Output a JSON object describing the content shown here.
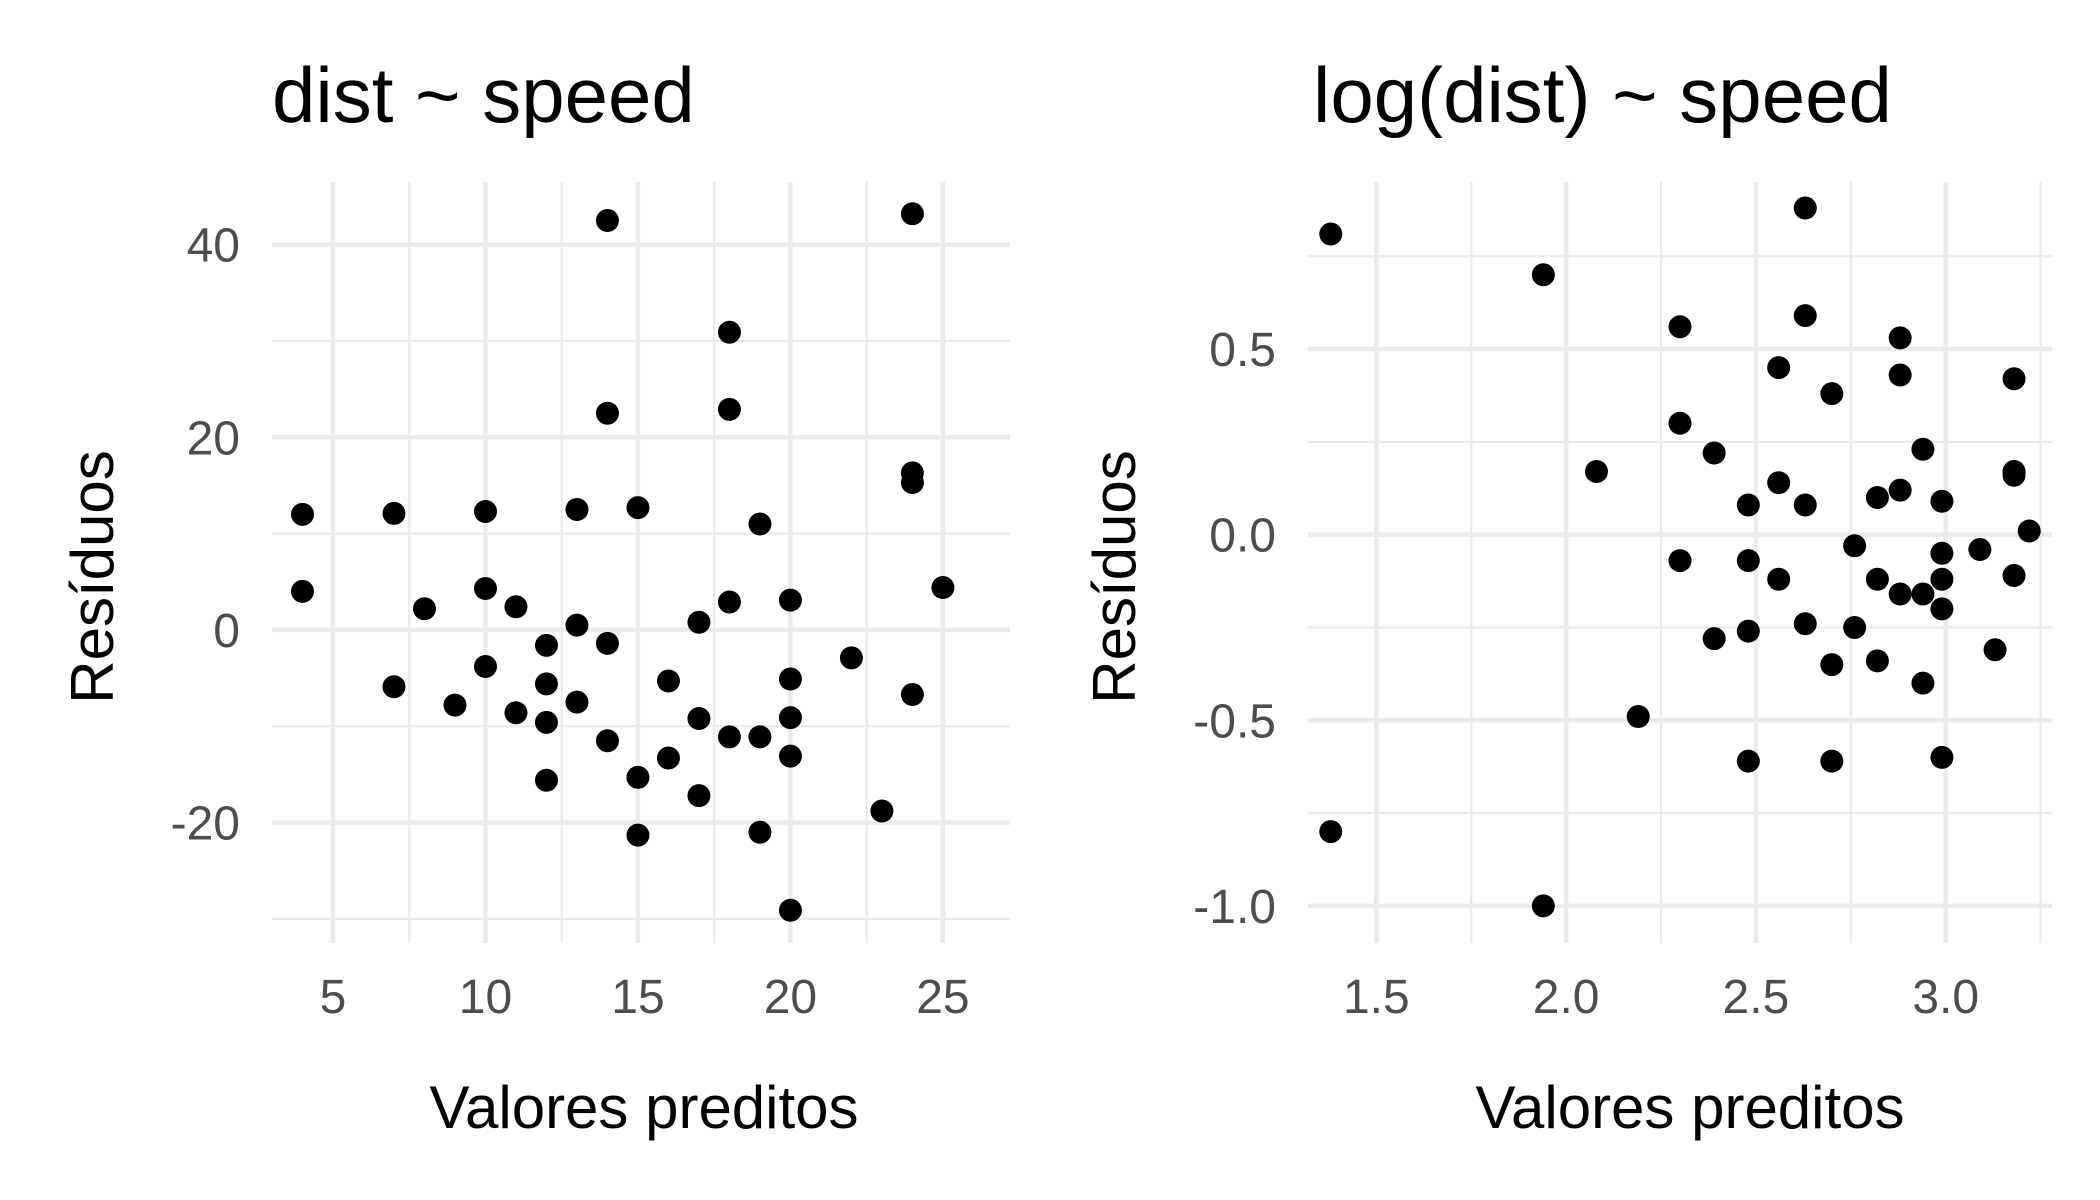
{
  "chart_data": [
    {
      "type": "scatter",
      "title": "dist ~ speed",
      "xlabel": "Valores preditos",
      "ylabel": "Resíduos",
      "xlim": [
        3,
        27.2
      ],
      "ylim": [
        -32.5,
        46.5
      ],
      "x_ticks": [
        5,
        10,
        15,
        20,
        25
      ],
      "x_tick_labels": [
        "5",
        "10",
        "15",
        "20",
        "25"
      ],
      "x_minor": [
        7.5,
        12.5,
        17.5,
        22.5
      ],
      "y_ticks": [
        -20,
        0,
        20,
        40
      ],
      "y_tick_labels": [
        "-20",
        "0",
        "20",
        "40"
      ],
      "y_minor": [
        -30,
        -10,
        10,
        30
      ],
      "grid": true,
      "legend": "none",
      "series": [
        {
          "points": [
            [
              4,
              12.0
            ],
            [
              4,
              4.0
            ],
            [
              7,
              12.1
            ],
            [
              7,
              -5.9
            ],
            [
              8,
              2.2
            ],
            [
              9,
              -7.8
            ],
            [
              10,
              12.3
            ],
            [
              10,
              4.3
            ],
            [
              10,
              -3.8
            ],
            [
              11,
              2.4
            ],
            [
              11,
              -8.6
            ],
            [
              12,
              -1.6
            ],
            [
              12,
              -5.6
            ],
            [
              12,
              -9.6
            ],
            [
              12,
              -15.6
            ],
            [
              13,
              0.5
            ],
            [
              13,
              12.5
            ],
            [
              13,
              -7.5
            ],
            [
              14,
              42.5
            ],
            [
              14,
              22.5
            ],
            [
              14,
              -1.4
            ],
            [
              14,
              -11.5
            ],
            [
              15,
              12.7
            ],
            [
              15,
              -15.3
            ],
            [
              15,
              -21.3
            ],
            [
              16,
              -5.3
            ],
            [
              16,
              -13.3
            ],
            [
              17,
              0.8
            ],
            [
              17,
              -9.2
            ],
            [
              17,
              -17.2
            ],
            [
              18,
              30.9
            ],
            [
              18,
              22.9
            ],
            [
              18,
              2.9
            ],
            [
              18,
              -11.1
            ],
            [
              19,
              11.0
            ],
            [
              19,
              -11.1
            ],
            [
              19,
              -21.0
            ],
            [
              20,
              3.1
            ],
            [
              20,
              -5.1
            ],
            [
              20,
              -9.1
            ],
            [
              20,
              -13.1
            ],
            [
              20,
              -29.1
            ],
            [
              22,
              -2.9
            ],
            [
              23,
              -18.8
            ],
            [
              24,
              43.2
            ],
            [
              24,
              16.3
            ],
            [
              24,
              15.3
            ],
            [
              24,
              -6.7
            ],
            [
              25,
              4.4
            ]
          ]
        }
      ]
    },
    {
      "type": "scatter",
      "title": "log(dist) ~ speed",
      "xlabel": "Valores preditos",
      "ylabel": "Resíduos",
      "xlim": [
        1.32,
        3.28
      ],
      "ylim": [
        -1.1,
        0.95
      ],
      "x_ticks": [
        1.5,
        2.0,
        2.5,
        3.0
      ],
      "x_tick_labels": [
        "1.5",
        "2.0",
        "2.5",
        "3.0"
      ],
      "x_minor": [
        1.75,
        2.25,
        2.75,
        3.25
      ],
      "y_ticks": [
        -1.0,
        -0.5,
        0.0,
        0.5
      ],
      "y_tick_labels": [
        "-1.0",
        "-0.5",
        "0.0",
        "0.5"
      ],
      "y_minor": [
        -0.75,
        -0.25,
        0.25,
        0.75
      ],
      "grid": true,
      "legend": "none",
      "series": [
        {
          "points": [
            [
              1.38,
              0.81
            ],
            [
              1.38,
              -0.8
            ],
            [
              1.94,
              0.7
            ],
            [
              1.94,
              -1.0
            ],
            [
              2.08,
              0.17
            ],
            [
              2.19,
              -0.49
            ],
            [
              2.3,
              0.56
            ],
            [
              2.3,
              0.3
            ],
            [
              2.3,
              -0.07
            ],
            [
              2.39,
              0.22
            ],
            [
              2.39,
              -0.28
            ],
            [
              2.48,
              0.08
            ],
            [
              2.48,
              -0.07
            ],
            [
              2.48,
              -0.26
            ],
            [
              2.48,
              -0.61
            ],
            [
              2.56,
              0.45
            ],
            [
              2.56,
              0.14
            ],
            [
              2.56,
              -0.12
            ],
            [
              2.63,
              0.88
            ],
            [
              2.63,
              0.59
            ],
            [
              2.63,
              0.08
            ],
            [
              2.63,
              -0.24
            ],
            [
              2.7,
              0.38
            ],
            [
              2.7,
              -0.35
            ],
            [
              2.7,
              -0.61
            ],
            [
              2.76,
              -0.03
            ],
            [
              2.76,
              -0.25
            ],
            [
              2.82,
              0.1
            ],
            [
              2.82,
              -0.12
            ],
            [
              2.82,
              -0.34
            ],
            [
              2.88,
              0.53
            ],
            [
              2.88,
              0.43
            ],
            [
              2.88,
              0.12
            ],
            [
              2.88,
              -0.16
            ],
            [
              2.94,
              0.23
            ],
            [
              2.94,
              -0.16
            ],
            [
              2.94,
              -0.4
            ],
            [
              2.99,
              0.09
            ],
            [
              2.99,
              -0.05
            ],
            [
              2.99,
              -0.12
            ],
            [
              2.99,
              -0.2
            ],
            [
              2.99,
              -0.6
            ],
            [
              3.09,
              -0.04
            ],
            [
              3.13,
              -0.31
            ],
            [
              3.18,
              0.42
            ],
            [
              3.18,
              0.17
            ],
            [
              3.18,
              0.16
            ],
            [
              3.18,
              -0.11
            ],
            [
              3.22,
              0.01
            ]
          ]
        }
      ]
    }
  ]
}
